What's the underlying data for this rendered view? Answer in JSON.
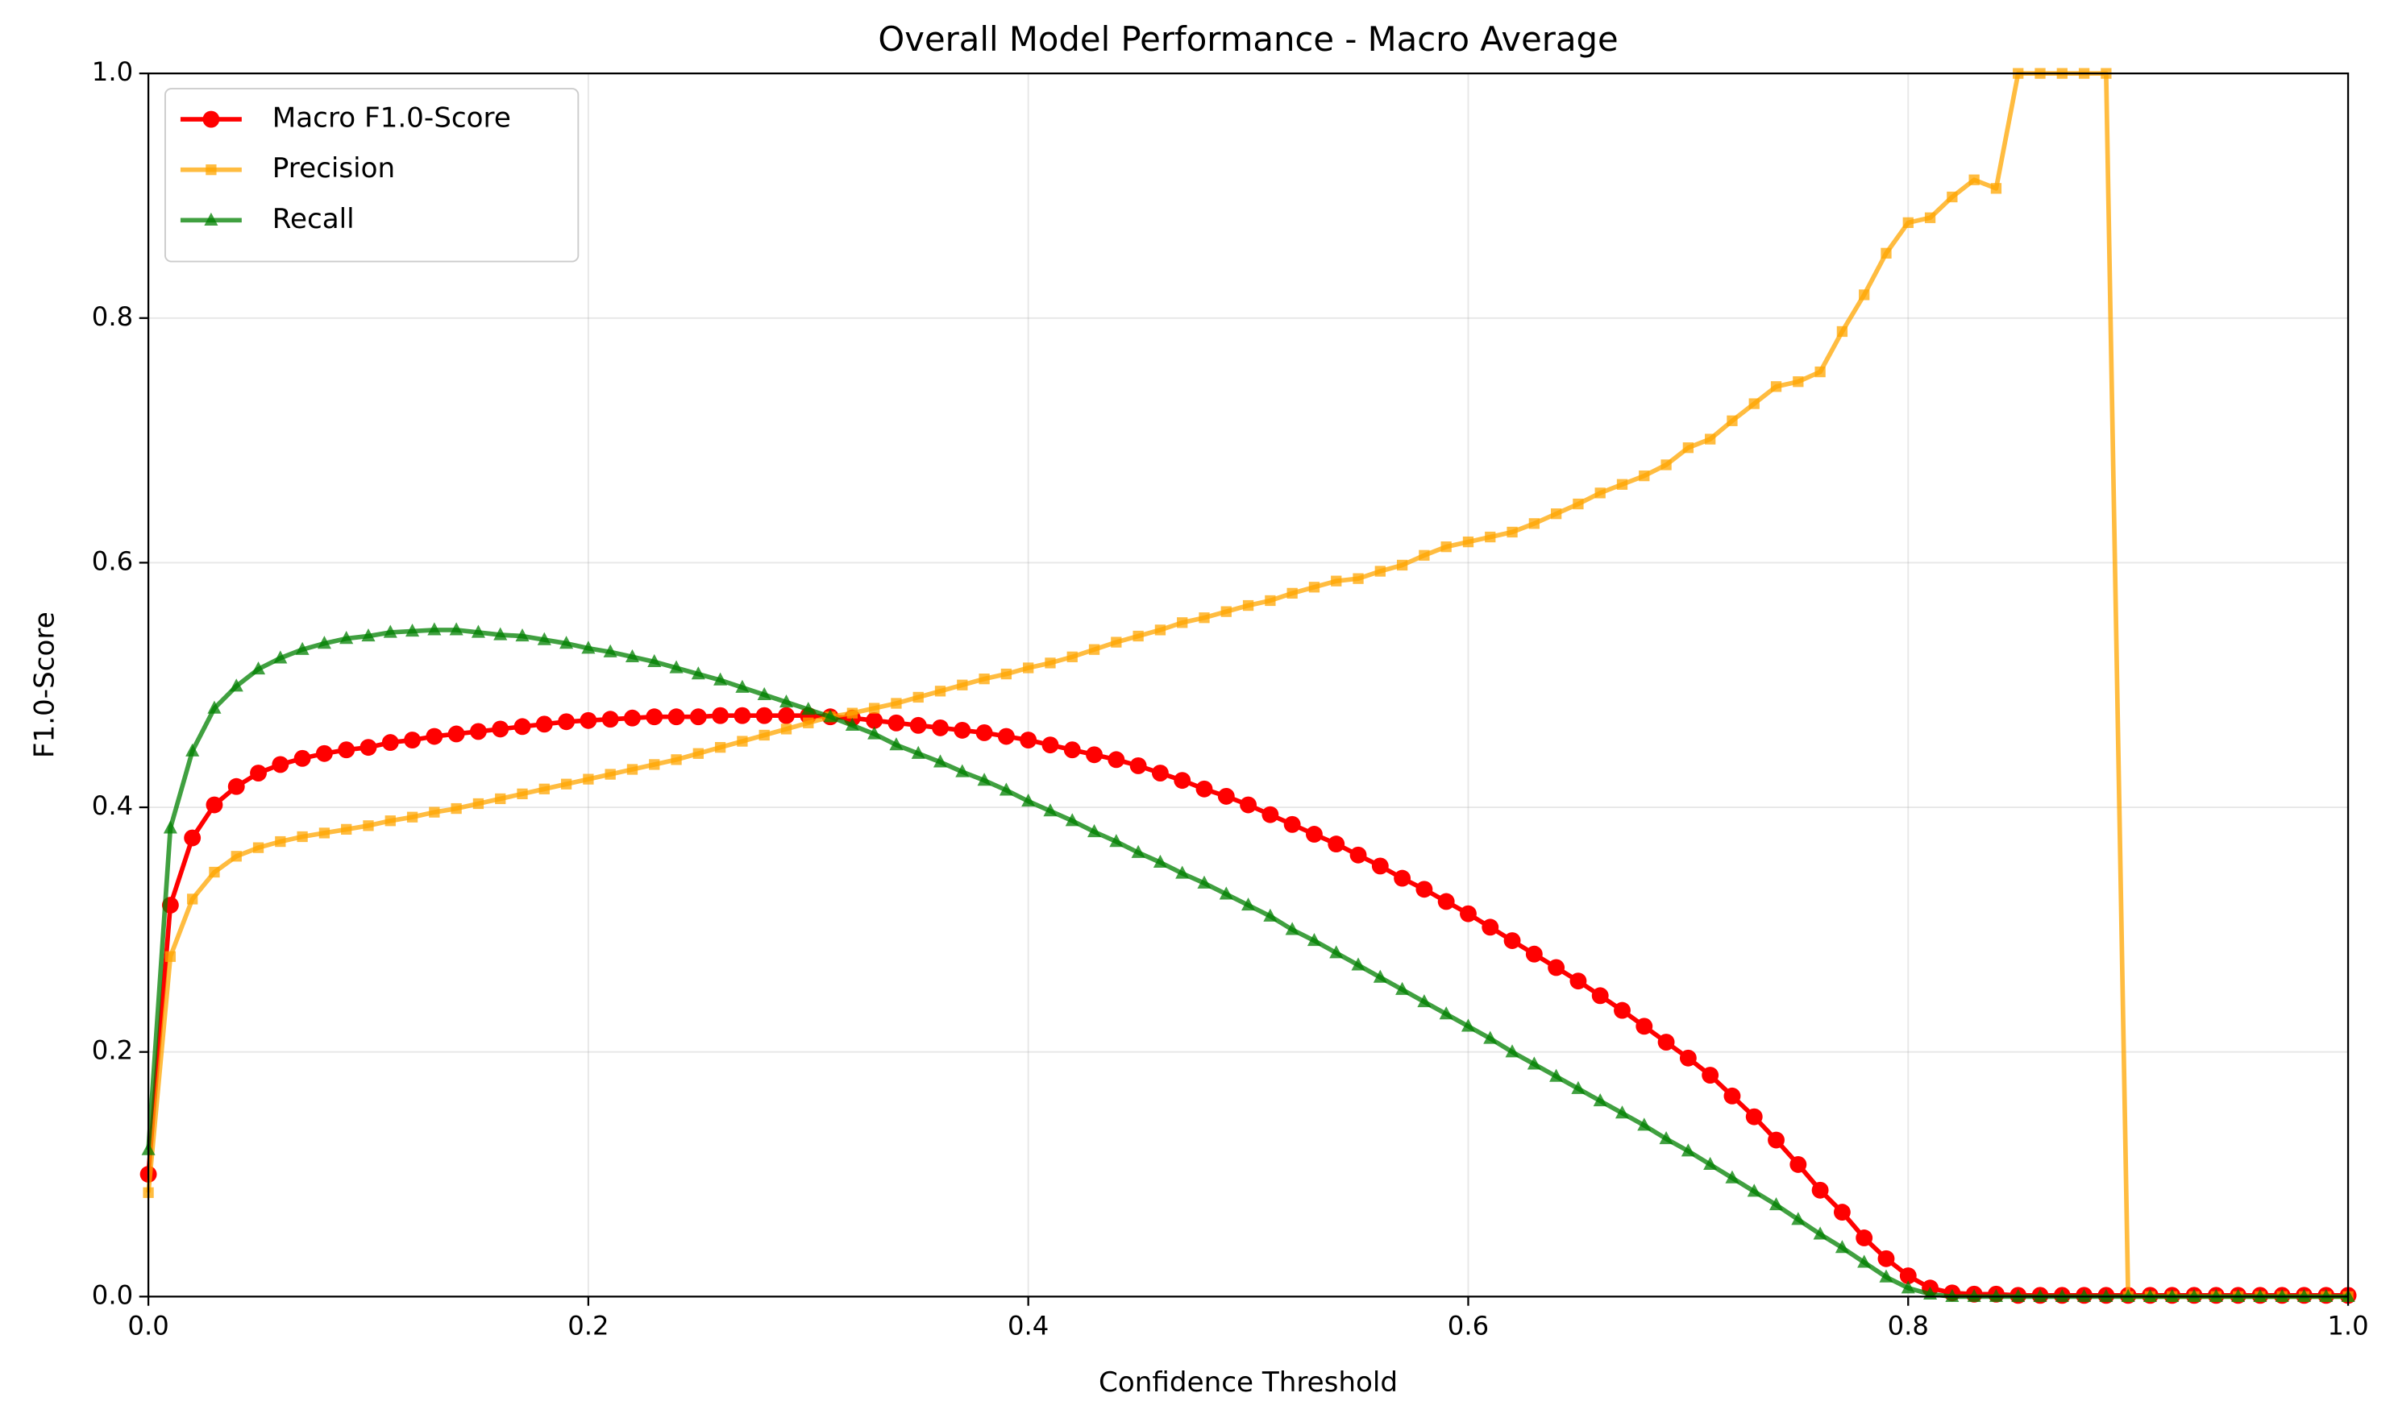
{
  "chart_data": {
    "type": "line",
    "title": "Overall Model Performance - Macro Average",
    "x_label": "Confidence Threshold",
    "y_label": "F1.0-Score",
    "x": [
      0,
      0.01,
      0.02,
      0.03,
      0.04,
      0.05,
      0.06,
      0.07,
      0.08,
      0.09,
      0.1,
      0.11,
      0.12,
      0.13,
      0.14,
      0.15,
      0.16,
      0.17,
      0.18,
      0.19,
      0.2,
      0.21,
      0.22,
      0.23,
      0.24,
      0.25,
      0.26,
      0.27,
      0.28,
      0.29,
      0.3,
      0.31,
      0.32,
      0.33,
      0.34,
      0.35,
      0.36,
      0.37,
      0.38,
      0.39,
      0.4,
      0.41,
      0.42,
      0.43,
      0.44,
      0.45,
      0.46,
      0.47,
      0.48,
      0.49,
      0.5,
      0.51,
      0.52,
      0.53,
      0.54,
      0.55,
      0.56,
      0.57,
      0.58,
      0.59,
      0.6,
      0.61,
      0.62,
      0.63,
      0.64,
      0.65,
      0.66,
      0.67,
      0.68,
      0.69,
      0.7,
      0.71,
      0.72,
      0.73,
      0.74,
      0.75,
      0.76,
      0.77,
      0.78,
      0.79,
      0.8,
      0.81,
      0.82,
      0.83,
      0.84,
      0.85,
      0.86,
      0.87,
      0.88,
      0.89,
      0.9,
      0.91,
      0.92,
      0.93,
      0.94,
      0.95,
      0.96,
      0.97,
      0.98,
      0.99,
      1
    ],
    "series": [
      {
        "name": "Macro F1.0-Score",
        "color": "#ff0000",
        "marker": "circle",
        "opacity": 1,
        "values": [
          0.1,
          0.32,
          0.375,
          0.402,
          0.417,
          0.428,
          0.435,
          0.44,
          0.444,
          0.447,
          0.449,
          0.453,
          0.455,
          0.458,
          0.46,
          0.462,
          0.464,
          0.466,
          0.468,
          0.47,
          0.471,
          0.472,
          0.473,
          0.474,
          0.474,
          0.474,
          0.475,
          0.475,
          0.475,
          0.475,
          0.475,
          0.474,
          0.473,
          0.471,
          0.469,
          0.467,
          0.465,
          0.463,
          0.461,
          0.458,
          0.455,
          0.451,
          0.447,
          0.443,
          0.439,
          0.434,
          0.428,
          0.422,
          0.415,
          0.409,
          0.402,
          0.394,
          0.386,
          0.378,
          0.37,
          0.361,
          0.352,
          0.342,
          0.333,
          0.323,
          0.313,
          0.302,
          0.291,
          0.28,
          0.269,
          0.258,
          0.246,
          0.234,
          0.221,
          0.208,
          0.195,
          0.181,
          0.164,
          0.147,
          0.128,
          0.108,
          0.087,
          0.069,
          0.048,
          0.031,
          0.017,
          0.007,
          0.003,
          0.002,
          0.002,
          0.001,
          0.001,
          0.001,
          0.001,
          0.001,
          0.001,
          0.001,
          0.001,
          0.001,
          0.001,
          0.001,
          0.001,
          0.001,
          0.001,
          0.001,
          0.001
        ]
      },
      {
        "name": "Precision",
        "color": "#ffa500",
        "marker": "square",
        "opacity": 0.75,
        "values": [
          0.085,
          0.278,
          0.325,
          0.347,
          0.36,
          0.367,
          0.372,
          0.376,
          0.379,
          0.382,
          0.385,
          0.389,
          0.392,
          0.396,
          0.399,
          0.403,
          0.407,
          0.411,
          0.415,
          0.419,
          0.423,
          0.427,
          0.431,
          0.435,
          0.439,
          0.444,
          0.449,
          0.454,
          0.459,
          0.464,
          0.469,
          0.474,
          0.477,
          0.481,
          0.485,
          0.49,
          0.495,
          0.5,
          0.505,
          0.509,
          0.514,
          0.518,
          0.523,
          0.529,
          0.535,
          0.54,
          0.545,
          0.551,
          0.555,
          0.56,
          0.565,
          0.569,
          0.575,
          0.58,
          0.585,
          0.587,
          0.593,
          0.598,
          0.606,
          0.613,
          0.617,
          0.621,
          0.625,
          0.632,
          0.64,
          0.648,
          0.657,
          0.664,
          0.671,
          0.68,
          0.694,
          0.701,
          0.716,
          0.73,
          0.744,
          0.748,
          0.756,
          0.789,
          0.819,
          0.853,
          0.878,
          0.882,
          0.899,
          0.913,
          0.906,
          1,
          1,
          1,
          1,
          1,
          0,
          0,
          0,
          0,
          0,
          0,
          0,
          0,
          0,
          0,
          0
        ]
      },
      {
        "name": "Recall",
        "color": "#008000",
        "marker": "triangle",
        "opacity": 0.75,
        "values": [
          0.12,
          0.383,
          0.446,
          0.481,
          0.499,
          0.513,
          0.522,
          0.529,
          0.534,
          0.538,
          0.54,
          0.543,
          0.544,
          0.545,
          0.545,
          0.543,
          0.541,
          0.54,
          0.537,
          0.534,
          0.53,
          0.527,
          0.523,
          0.519,
          0.514,
          0.509,
          0.504,
          0.498,
          0.492,
          0.486,
          0.48,
          0.474,
          0.467,
          0.46,
          0.451,
          0.444,
          0.437,
          0.429,
          0.422,
          0.414,
          0.405,
          0.397,
          0.389,
          0.38,
          0.372,
          0.363,
          0.355,
          0.346,
          0.338,
          0.329,
          0.32,
          0.311,
          0.3,
          0.291,
          0.281,
          0.271,
          0.261,
          0.251,
          0.241,
          0.231,
          0.221,
          0.211,
          0.2,
          0.19,
          0.18,
          0.17,
          0.16,
          0.15,
          0.14,
          0.129,
          0.119,
          0.108,
          0.097,
          0.086,
          0.075,
          0.063,
          0.051,
          0.04,
          0.028,
          0.016,
          0.007,
          0.002,
          0,
          0,
          0,
          0,
          0,
          0,
          0,
          0,
          0,
          0,
          0,
          0,
          0,
          0,
          0,
          0,
          0,
          0,
          0
        ]
      }
    ],
    "xlim": [
      0,
      1
    ],
    "ylim": [
      0,
      1
    ],
    "xticks": [
      {
        "value": 0,
        "label": "0.0"
      },
      0.2,
      0.4,
      0.6,
      0.8,
      {
        "value": 1,
        "label": "1.0"
      }
    ],
    "yticks": [
      {
        "value": 0,
        "label": "0.0"
      },
      0.2,
      0.4,
      0.6,
      0.8,
      {
        "value": 1,
        "label": "1.0"
      }
    ],
    "grid": true,
    "legend": "upper-left"
  }
}
